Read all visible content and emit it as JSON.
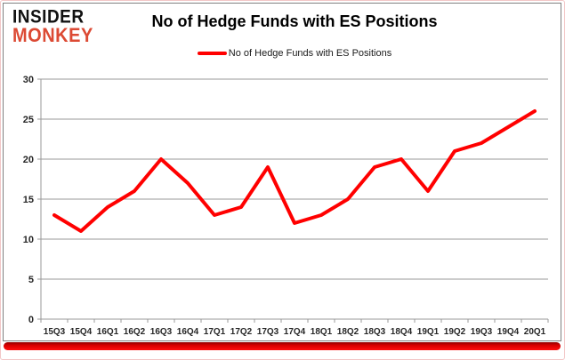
{
  "logo": {
    "line1": "INSIDER",
    "line2": "MONKEY",
    "monkey_color": "#dc4a34",
    "insider_color": "#121212"
  },
  "header": {
    "title": "No of Hedge Funds with ES Positions"
  },
  "legend": {
    "label": "No of Hedge Funds with ES Positions",
    "marker_color": "#ff0000"
  },
  "chart_data": {
    "type": "line",
    "title": "No of Hedge Funds with ES Positions",
    "categories": [
      "15Q3",
      "15Q4",
      "16Q1",
      "16Q2",
      "16Q3",
      "16Q4",
      "17Q1",
      "17Q2",
      "17Q3",
      "17Q4",
      "18Q1",
      "18Q2",
      "18Q3",
      "18Q4",
      "19Q1",
      "19Q2",
      "19Q3",
      "19Q4",
      "20Q1"
    ],
    "series": [
      {
        "name": "No of Hedge Funds with ES Positions",
        "color": "#ff0000",
        "values": [
          13,
          11,
          14,
          16,
          20,
          17,
          13,
          14,
          19,
          12,
          13,
          15,
          19,
          20,
          16,
          21,
          22,
          24,
          26
        ]
      }
    ],
    "xlabel": "",
    "ylabel": "",
    "ylim": [
      0,
      30
    ],
    "yticks": [
      0,
      5,
      10,
      15,
      20,
      25,
      30
    ],
    "grid": true,
    "legend_position": "top-center"
  },
  "colors": {
    "line": "#ff0000",
    "accent_bar": "#d90000",
    "grid": "#999999",
    "frame": "#808080",
    "outer_border": "#f2c6c6",
    "tick_text": "#262626"
  }
}
